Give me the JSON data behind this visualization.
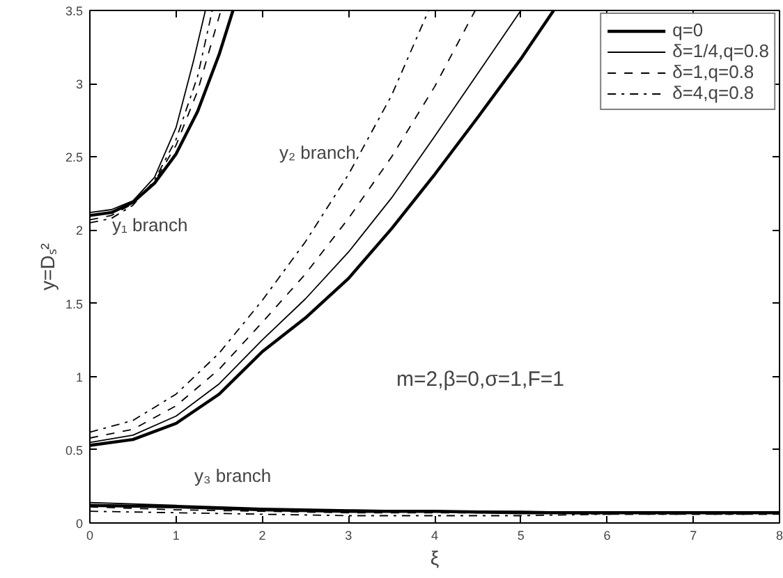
{
  "chart_data": {
    "type": "line",
    "xlabel": "ξ",
    "ylabel": "y=Dₛ²",
    "xlim": [
      0,
      8
    ],
    "ylim": [
      0,
      3.5
    ],
    "xticks": [
      0,
      1,
      2,
      3,
      4,
      5,
      6,
      7,
      8
    ],
    "yticks": [
      0,
      0.5,
      1,
      1.5,
      2,
      2.5,
      3,
      3.5
    ],
    "grid": false,
    "legend": "top right",
    "marker": "none",
    "series": [
      {
        "name": "q=0",
        "color": "#000000",
        "line_style": "solid",
        "x": [
          0,
          0.25,
          0.5,
          0.75,
          1,
          1.25,
          1.5,
          1.66
        ],
        "values": [
          2.1,
          2.12,
          2.19,
          2.32,
          2.52,
          2.81,
          3.2,
          3.5
        ]
      },
      {
        "name": "δ=1/4,q=0.8",
        "color": "#000000",
        "line_style": "solid",
        "x": [
          0,
          0.25,
          0.5,
          0.75,
          1,
          1.2,
          1.34
        ],
        "values": [
          2.12,
          2.14,
          2.2,
          2.36,
          2.7,
          3.15,
          3.5
        ]
      },
      {
        "name": "δ=1,q=0.8",
        "color": "#000000",
        "line_style": "dashed",
        "x": [
          0,
          0.25,
          0.5,
          0.75,
          1,
          1.25,
          1.52
        ],
        "values": [
          2.07,
          2.1,
          2.18,
          2.33,
          2.58,
          2.95,
          3.5
        ]
      },
      {
        "name": "δ=4,q=0.8",
        "color": "#000000",
        "line_style": "dashdot",
        "x": [
          0,
          0.25,
          0.5,
          0.75,
          1,
          1.25,
          1.42
        ],
        "values": [
          2.05,
          2.08,
          2.17,
          2.34,
          2.62,
          3.05,
          3.5
        ]
      },
      {
        "color": "#000000",
        "line_style": "solid",
        "x": [
          0,
          0.5,
          1,
          1.5,
          2,
          2.5,
          3,
          3.5,
          4,
          4.5,
          5,
          5.38
        ],
        "values": [
          0.53,
          0.57,
          0.68,
          0.88,
          1.17,
          1.4,
          1.67,
          2.01,
          2.38,
          2.77,
          3.17,
          3.5
        ]
      },
      {
        "color": "#000000",
        "line_style": "solid",
        "x": [
          0,
          0.5,
          1,
          1.5,
          2,
          2.5,
          3,
          3.5,
          4,
          4.5,
          5
        ],
        "values": [
          0.55,
          0.6,
          0.73,
          0.95,
          1.25,
          1.53,
          1.85,
          2.22,
          2.64,
          3.07,
          3.5
        ]
      },
      {
        "color": "#000000",
        "line_style": "dashed",
        "x": [
          0,
          0.5,
          1,
          1.5,
          2,
          2.5,
          3,
          3.5,
          4,
          4.47
        ],
        "values": [
          0.58,
          0.64,
          0.8,
          1.05,
          1.37,
          1.7,
          2.08,
          2.5,
          2.98,
          3.5
        ]
      },
      {
        "color": "#000000",
        "line_style": "dashdot",
        "x": [
          0,
          0.5,
          1,
          1.5,
          2,
          2.5,
          3,
          3.5,
          3.93
        ],
        "values": [
          0.62,
          0.7,
          0.88,
          1.16,
          1.52,
          1.92,
          2.38,
          2.92,
          3.5
        ]
      },
      {
        "color": "#000000",
        "line_style": "solid",
        "x": [
          0,
          1,
          2,
          3,
          4,
          5,
          6,
          7,
          8
        ],
        "values": [
          0.12,
          0.11,
          0.09,
          0.08,
          0.08,
          0.07,
          0.07,
          0.07,
          0.07
        ]
      },
      {
        "color": "#000000",
        "line_style": "solid",
        "x": [
          0,
          1,
          2,
          3,
          4,
          5,
          6,
          7,
          8
        ],
        "values": [
          0.14,
          0.12,
          0.1,
          0.09,
          0.08,
          0.08,
          0.07,
          0.07,
          0.07
        ]
      },
      {
        "color": "#000000",
        "line_style": "dashed",
        "x": [
          0,
          1,
          2,
          3,
          4,
          5,
          6,
          7,
          8
        ],
        "values": [
          0.11,
          0.09,
          0.08,
          0.07,
          0.07,
          0.07,
          0.06,
          0.06,
          0.06
        ]
      },
      {
        "color": "#000000",
        "line_style": "dashdot",
        "x": [
          0,
          1,
          2,
          3,
          4,
          5,
          6,
          7,
          8
        ],
        "values": [
          0.08,
          0.07,
          0.06,
          0.05,
          0.05,
          0.05,
          0.06,
          0.06,
          0.06
        ]
      }
    ],
    "annotations": [
      "y₁ branch",
      "y₂ branch",
      "y₃ branch",
      "m=2,β=0,σ=1,F=1"
    ]
  }
}
